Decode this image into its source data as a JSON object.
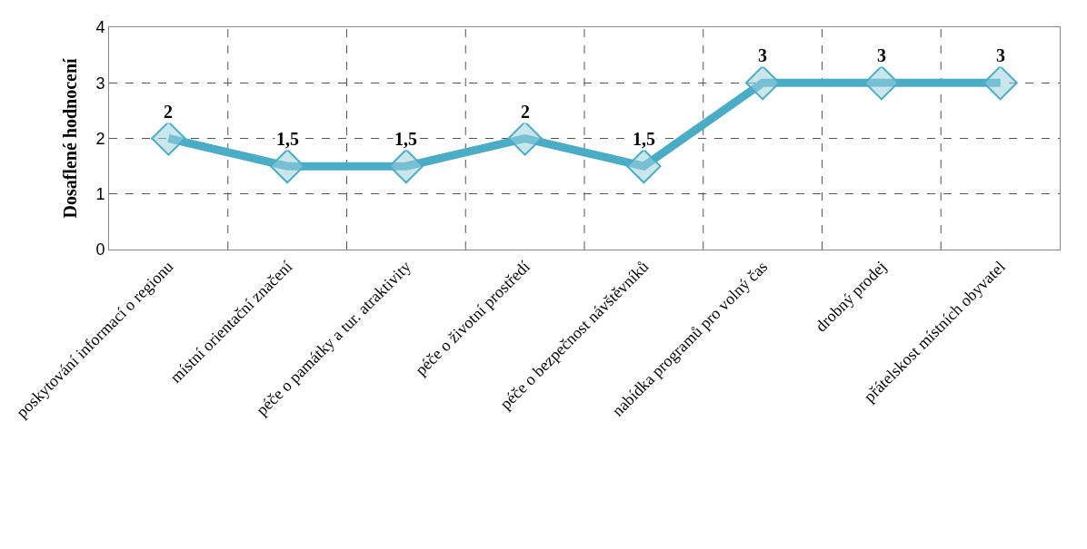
{
  "chart_data": {
    "type": "line",
    "ylabel": "Dosaflené hodnocení",
    "categories": [
      "poskytování informací o regionu",
      "místní orientační značení",
      "péče o památky a tur. atraktivity",
      "péče o životní prostředí",
      "péče o bezpečnost návštěvníků",
      "nabídka programů pro volný čas",
      "drobný prodej",
      "přátelskost místních obyvatel"
    ],
    "series": [
      {
        "color": "#4bacc6",
        "values": [
          2,
          1.5,
          1.5,
          2,
          1.5,
          3,
          3,
          3
        ],
        "value_labels": [
          "2",
          "1,5",
          "1,5",
          "2",
          "1,5",
          "3",
          "3",
          "3"
        ]
      }
    ],
    "ylim": [
      0,
      4
    ],
    "yticks": [
      0,
      1,
      2,
      3,
      4
    ],
    "grid": true,
    "marker": "diamond",
    "line_style": "solid"
  }
}
